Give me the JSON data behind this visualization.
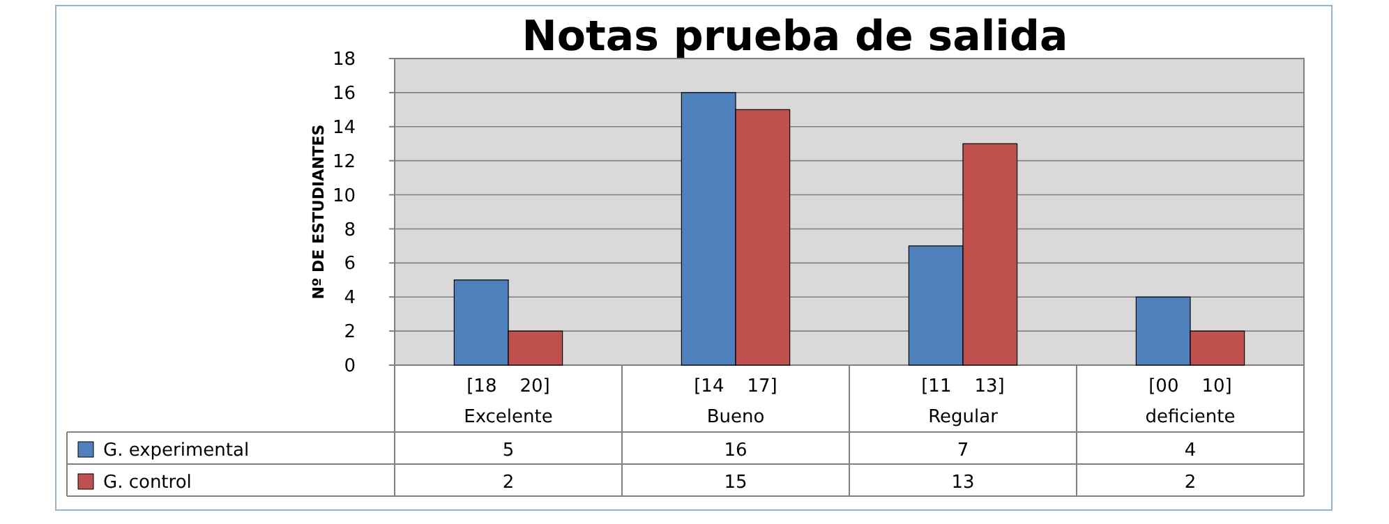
{
  "chart_data": {
    "type": "bar",
    "title": "Notas prueba de salida",
    "ylabel": "Nº DE ESTUDIANTES",
    "categories": [
      "[18    20]\nExcelente",
      "[14    17]\nBueno",
      "[11    13]\nRegular",
      "[00    10]\ndeficiente"
    ],
    "series": [
      {
        "name": "G. experimental",
        "color": "#4f81bd",
        "values": [
          5,
          16,
          7,
          4
        ]
      },
      {
        "name": "G. control",
        "color": "#c0504d",
        "values": [
          2,
          15,
          13,
          2
        ]
      }
    ],
    "ylim": [
      0,
      18
    ],
    "yticks": [
      0,
      2,
      4,
      6,
      8,
      10,
      12,
      14,
      16,
      18
    ],
    "grid": "y",
    "legend": "bottom",
    "data_labels": true
  }
}
